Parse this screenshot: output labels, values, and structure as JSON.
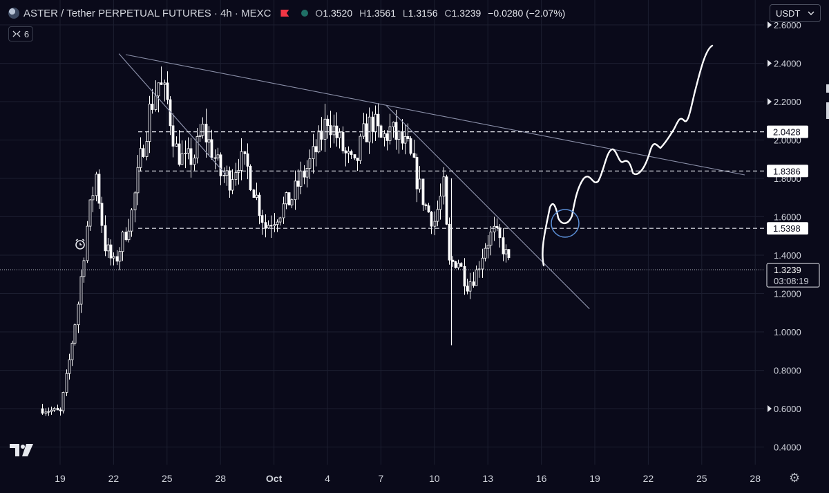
{
  "header": {
    "symbol_title": "ASTER / Tether PERPETUAL FUTURES · 4h · MEXC",
    "open_label": "O",
    "open": "1.3520",
    "high_label": "H",
    "high": "1.3561",
    "low_label": "L",
    "low": "1.3156",
    "close_label": "C",
    "close": "1.3239",
    "change": "−0.0280 (−2.07%)"
  },
  "toolbar": {
    "indicator_count": "6",
    "currency": "USDT",
    "icons": [
      "eye-icon",
      "flag-icon",
      "status-dot-icon",
      "chevron-down-icon",
      "alarm-clock-icon",
      "tradingview-logo",
      "gear-icon"
    ]
  },
  "colors": {
    "background": "#0a0a1a",
    "candle": "#ffffff",
    "grid": "#1c1e30",
    "trendline": "#8a8fa8"
  },
  "chart_data": {
    "type": "candlestick",
    "interval": "4h",
    "y_axis": {
      "range": [
        0.3,
        2.65
      ],
      "ticks": [
        "0.4000",
        "0.6000",
        "0.8000",
        "1.0000",
        "1.2000",
        "1.4000",
        "1.6000",
        "1.8000",
        "2.0000",
        "2.2000",
        "2.4000",
        "2.6000"
      ]
    },
    "x_axis": {
      "ticks": [
        "19",
        "22",
        "25",
        "28",
        "Oct",
        "4",
        "7",
        "10",
        "13",
        "16",
        "19",
        "22",
        "25",
        "28"
      ]
    },
    "last_price": "1.3239",
    "countdown": "03:08:19",
    "horizontal_levels": [
      {
        "value": 2.0428,
        "label": "2.0428"
      },
      {
        "value": 1.8386,
        "label": "1.8386"
      },
      {
        "value": 1.5398,
        "label": "1.5398"
      }
    ],
    "price_path": [
      {
        "date": "Sep 18",
        "price": 0.6
      },
      {
        "date": "Sep 19",
        "price": 0.58
      },
      {
        "date": "Sep 19.5",
        "price": 0.85
      },
      {
        "date": "Sep 20",
        "price": 1.15
      },
      {
        "date": "Sep 20.5",
        "price": 1.55
      },
      {
        "date": "Sep 21",
        "price": 1.82
      },
      {
        "date": "Sep 21.5",
        "price": 1.45
      },
      {
        "date": "Sep 22",
        "price": 1.35
      },
      {
        "date": "Sep 22.5",
        "price": 1.48
      },
      {
        "date": "Sep 23",
        "price": 1.62
      },
      {
        "date": "Sep 23.5",
        "price": 1.9
      },
      {
        "date": "Sep 24",
        "price": 2.15
      },
      {
        "date": "Sep 24.5",
        "price": 2.3
      },
      {
        "date": "Sep 25",
        "price": 2.2
      },
      {
        "date": "Sep 25.5",
        "price": 1.95
      },
      {
        "date": "Sep 26",
        "price": 1.88
      },
      {
        "date": "Sep 26.5",
        "price": 1.92
      },
      {
        "date": "Sep 27",
        "price": 2.05
      },
      {
        "date": "Sep 27.5",
        "price": 1.95
      },
      {
        "date": "Sep 28",
        "price": 1.82
      },
      {
        "date": "Sep 28.5",
        "price": 1.8
      },
      {
        "date": "Sep 29",
        "price": 1.9
      },
      {
        "date": "Sep 29.5",
        "price": 1.85
      },
      {
        "date": "Sep 30",
        "price": 1.7
      },
      {
        "date": "Sep 30.5",
        "price": 1.55
      },
      {
        "date": "Oct 1",
        "price": 1.6
      },
      {
        "date": "Oct 1.5",
        "price": 1.65
      },
      {
        "date": "Oct 2",
        "price": 1.7
      },
      {
        "date": "Oct 2.5",
        "price": 1.8
      },
      {
        "date": "Oct 3",
        "price": 1.88
      },
      {
        "date": "Oct 3.5",
        "price": 1.98
      },
      {
        "date": "Oct 4",
        "price": 2.12
      },
      {
        "date": "Oct 4.5",
        "price": 2.02
      },
      {
        "date": "Oct 5",
        "price": 1.92
      },
      {
        "date": "Oct 5.5",
        "price": 1.85
      },
      {
        "date": "Oct 6",
        "price": 2.02
      },
      {
        "date": "Oct 6.5",
        "price": 2.1
      },
      {
        "date": "Oct 7",
        "price": 2.0
      },
      {
        "date": "Oct 7.5",
        "price": 2.05
      },
      {
        "date": "Oct 8",
        "price": 2.0
      },
      {
        "date": "Oct 8.5",
        "price": 1.95
      },
      {
        "date": "Oct 9",
        "price": 1.8
      },
      {
        "date": "Oct 9.5",
        "price": 1.65
      },
      {
        "date": "Oct 10",
        "price": 1.58
      },
      {
        "date": "Oct 10.5",
        "price": 1.75
      },
      {
        "date": "Oct 10.8",
        "price": 1.35
      },
      {
        "date": "Oct 11.3",
        "price": 1.38
      },
      {
        "date": "Oct 11.8",
        "price": 1.25
      },
      {
        "date": "Oct 12.3",
        "price": 1.3
      },
      {
        "date": "Oct 12.8",
        "price": 1.45
      },
      {
        "date": "Oct 13.3",
        "price": 1.52
      },
      {
        "date": "Oct 13.8",
        "price": 1.45
      },
      {
        "date": "Oct 14.3",
        "price": 1.32
      }
    ],
    "trendlines": [
      {
        "from": {
          "date": "Sep 22.3",
          "price": 2.45
        },
        "to": {
          "date": "Sep 28.3",
          "price": 1.82
        }
      },
      {
        "from": {
          "date": "Oct 7.3",
          "price": 2.18
        },
        "to": {
          "date": "Oct 18.7",
          "price": 1.12
        }
      }
    ],
    "projection_path": "hand-drawn white curve rising from 1.33 near Oct 16 to about 2.48 near Oct 25",
    "annotation": "blue circle at 1.5398 near Oct 17"
  }
}
